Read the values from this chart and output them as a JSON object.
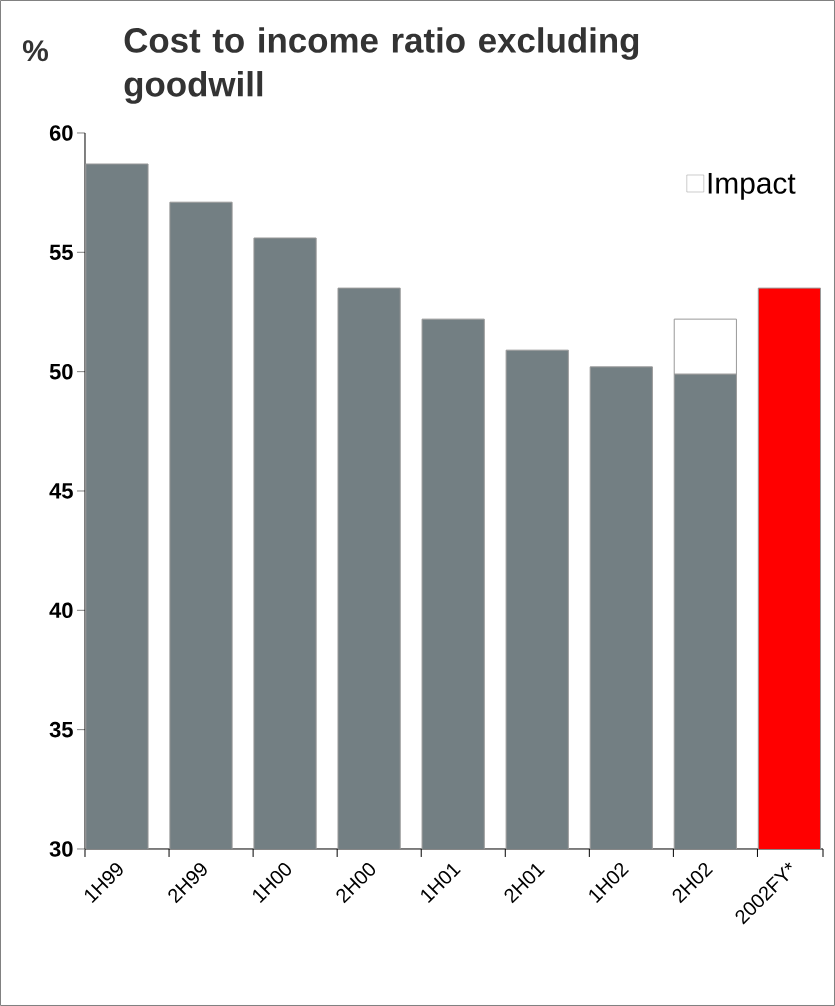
{
  "chart_data": {
    "type": "bar",
    "title": "Cost to income ratio excluding goodwill",
    "ylabel": "%",
    "categories": [
      "1H99",
      "2H99",
      "1H00",
      "2H00",
      "1H01",
      "2H01",
      "1H02",
      "2H02",
      "2002FY*"
    ],
    "series": [
      {
        "colors": [
          "#737f83",
          "#737f83",
          "#737f83",
          "#737f83",
          "#737f83",
          "#737f83",
          "#737f83",
          "#737f83",
          "#ff0000"
        ],
        "values": [
          58.7,
          57.1,
          55.6,
          53.5,
          52.2,
          50.9,
          50.2,
          49.9,
          53.5
        ]
      },
      {
        "name": "Impact",
        "color": "#ffffff",
        "values": [
          null,
          null,
          null,
          null,
          null,
          null,
          null,
          2.3,
          null
        ],
        "base": [
          null,
          null,
          null,
          null,
          null,
          null,
          null,
          49.9,
          null
        ]
      }
    ],
    "ylim": [
      30,
      60
    ],
    "yticks": [
      30,
      35,
      40,
      45,
      50,
      55,
      60
    ],
    "legend": "top right",
    "grid": false
  }
}
